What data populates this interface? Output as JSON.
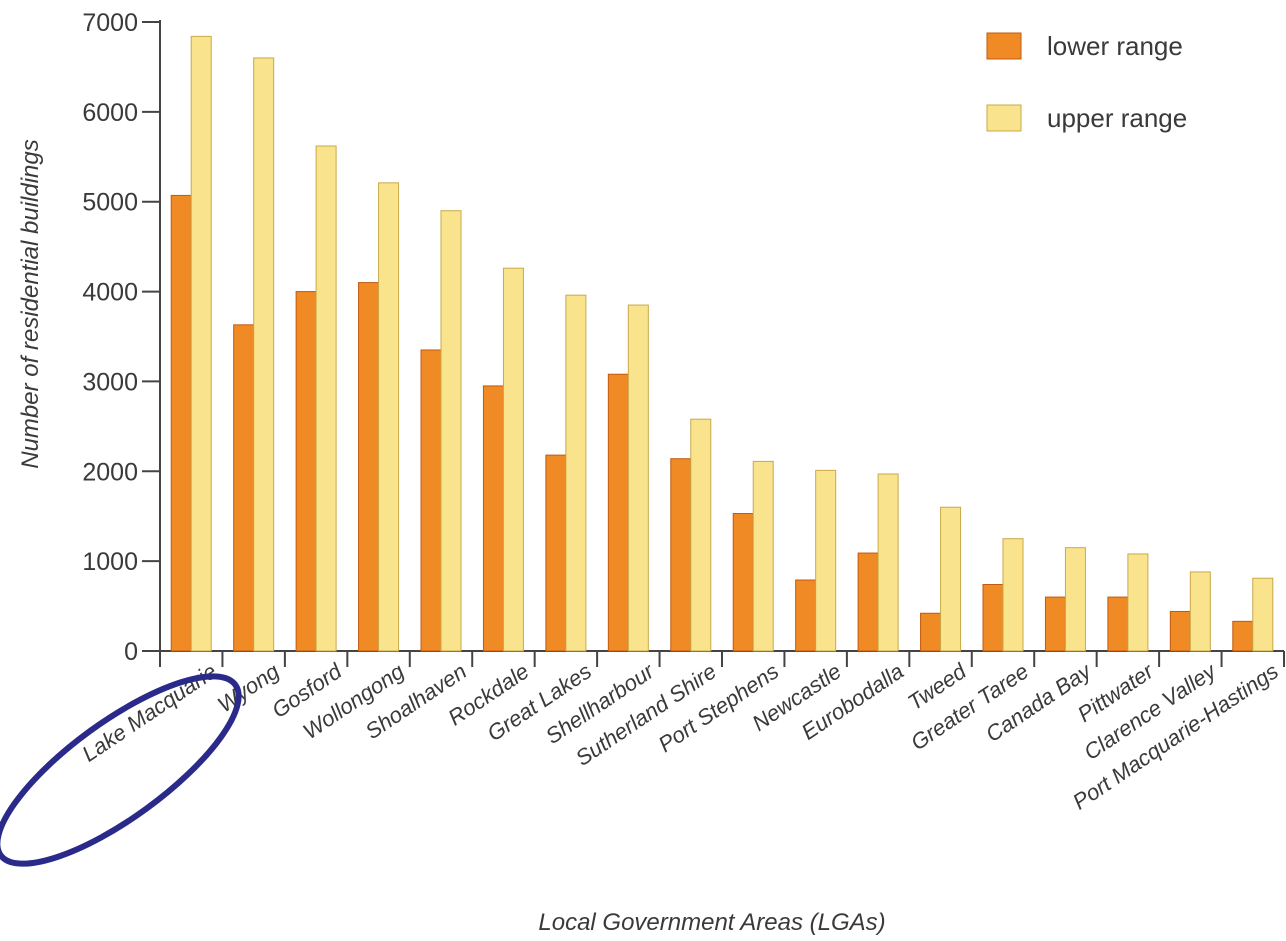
{
  "chart_data": {
    "type": "bar",
    "title": "",
    "xlabel": "Local Government Areas (LGAs)",
    "ylabel": "Number of residential buildings",
    "ylim": [
      0,
      7000
    ],
    "yticks": [
      0,
      1000,
      2000,
      3000,
      4000,
      5000,
      6000,
      7000
    ],
    "grid": false,
    "legend_position": "top-right",
    "categories": [
      "Lake Macquarie",
      "Wyong",
      "Gosford",
      "Wollongong",
      "Shoalhaven",
      "Rockdale",
      "Great Lakes",
      "Shellharbour",
      "Sutherland Shire",
      "Port Stephens",
      "Newcastle",
      "Eurobodalla",
      "Tweed",
      "Greater Taree",
      "Canada Bay",
      "Pittwater",
      "Clarence Valley",
      "Port Macquarie-Hastings"
    ],
    "series": [
      {
        "name": "lower range",
        "color": "#f08a24",
        "values": [
          5070,
          3630,
          4000,
          4100,
          3350,
          2950,
          2180,
          3080,
          2140,
          1530,
          790,
          1090,
          420,
          740,
          600,
          600,
          440,
          330
        ]
      },
      {
        "name": "upper range",
        "color": "#f9e38c",
        "values": [
          6840,
          6600,
          5620,
          5210,
          4900,
          4260,
          3960,
          3850,
          2580,
          2110,
          2010,
          1970,
          1600,
          1250,
          1150,
          1080,
          880,
          810
        ]
      }
    ],
    "annotations": [
      {
        "type": "ellipse",
        "target": "Lake Macquarie",
        "color": "#2a2a8a"
      }
    ]
  }
}
